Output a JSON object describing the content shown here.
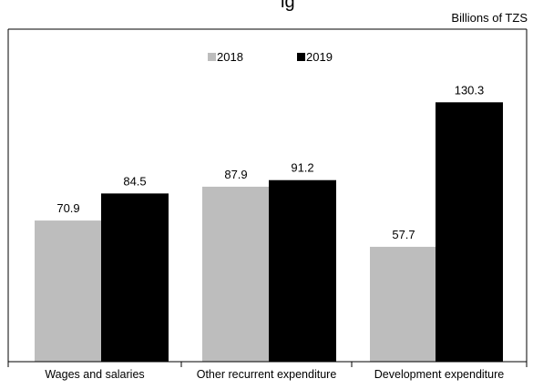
{
  "header": {
    "clipped_title_fragment": "ig",
    "unit": "Billions of TZS"
  },
  "colors": {
    "series_2018": "#bdbdbd",
    "series_2019": "#000000",
    "axis": "#000000"
  },
  "chart_data": {
    "type": "bar",
    "title": "",
    "xlabel": "",
    "ylabel": "",
    "unit_label": "Billions of TZS",
    "categories": [
      "Wages and salaries",
      "Other recurrent expenditure",
      "Development expenditure"
    ],
    "series": [
      {
        "name": "2018",
        "values": [
          70.9,
          87.9,
          57.7
        ],
        "labels": [
          "70.9",
          "87.9",
          "57.7"
        ],
        "color": "#bdbdbd"
      },
      {
        "name": "2019",
        "values": [
          84.5,
          91.2,
          130.3
        ],
        "labels": [
          "84.5",
          "91.2",
          "130.3"
        ],
        "color": "#000000"
      }
    ],
    "ylim": [
      0,
      150
    ],
    "grid": false,
    "legend": {
      "placement": "top-center",
      "entries": [
        "2018",
        "2019"
      ]
    },
    "frame": true
  }
}
